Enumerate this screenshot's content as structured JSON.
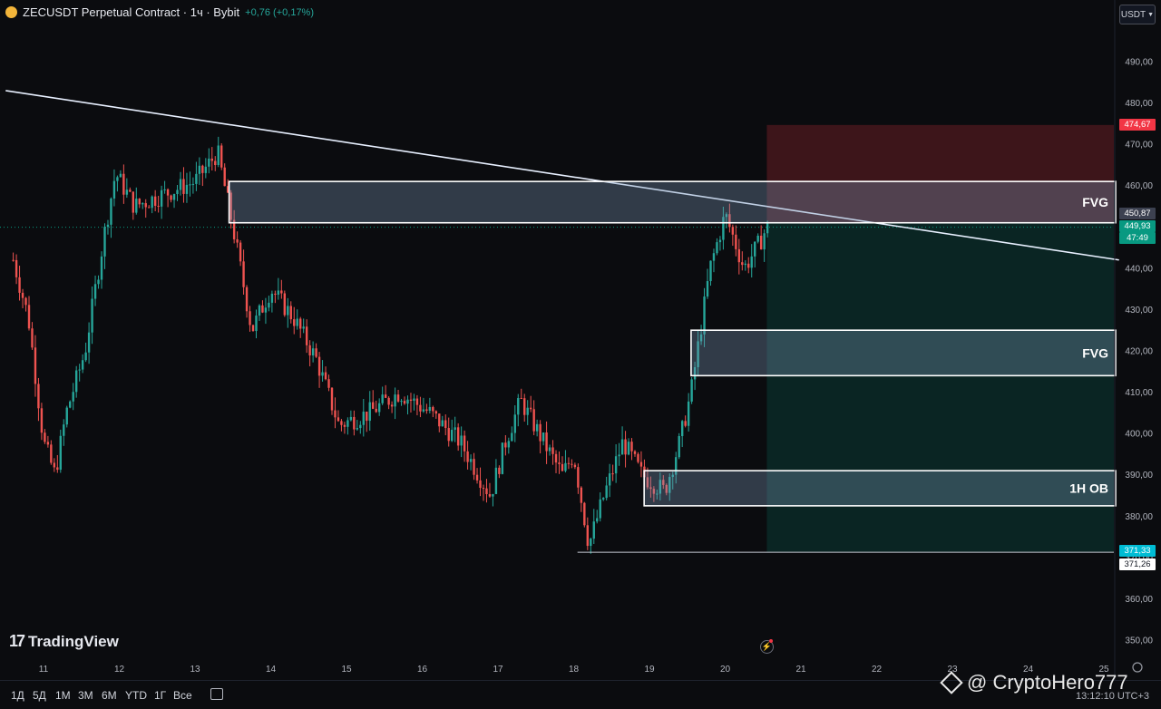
{
  "header": {
    "title": "ZECUSDT Perpetual Contract · 1ч · Bybit",
    "change": "+0,76 (+0,17%)"
  },
  "currency_button": "USDT",
  "price_tags": {
    "top_red": "474,67",
    "last_dark": "450,87",
    "current": "449,93",
    "countdown": "47:49",
    "low_teal": "371,33",
    "low_white": "371,26"
  },
  "branding": {
    "logo_text": "TradingView"
  },
  "toolbar": {
    "timeframes": [
      "1Д",
      "5Д",
      "1М",
      "3М",
      "6М",
      "YTD",
      "1Г",
      "Все"
    ],
    "clock": "13:12:10 UTC+3"
  },
  "watermark": "@ CryptoHero777",
  "colors": {
    "up": "#26a69a",
    "down": "#ef5350",
    "accent_teal": "#00bcd4",
    "accent_red": "#f23645"
  },
  "chart_data": {
    "type": "candlestick",
    "title": "ZECUSDT Perpetual Contract · 1ч · Bybit",
    "y_axis": {
      "ticks": [
        "490,00",
        "480,00",
        "470,00",
        "460,00",
        "450,00",
        "440,00",
        "430,00",
        "420,00",
        "410,00",
        "400,00",
        "390,00",
        "380,00",
        "370,00",
        "360,00",
        "350,00"
      ],
      "ylim": [
        345,
        498
      ]
    },
    "x_axis": {
      "ticks": [
        "11",
        "12",
        "13",
        "14",
        "15",
        "16",
        "17",
        "18",
        "19",
        "20",
        "21",
        "22",
        "23",
        "24",
        "25"
      ]
    },
    "price_path": [
      {
        "day": 10.6,
        "price": 442
      },
      {
        "day": 10.8,
        "price": 428
      },
      {
        "day": 11.0,
        "price": 398
      },
      {
        "day": 11.15,
        "price": 390
      },
      {
        "day": 11.3,
        "price": 405
      },
      {
        "day": 11.55,
        "price": 420
      },
      {
        "day": 11.8,
        "price": 448
      },
      {
        "day": 11.95,
        "price": 463
      },
      {
        "day": 12.2,
        "price": 455
      },
      {
        "day": 12.6,
        "price": 458
      },
      {
        "day": 13.0,
        "price": 461
      },
      {
        "day": 13.3,
        "price": 468
      },
      {
        "day": 13.5,
        "price": 450
      },
      {
        "day": 13.75,
        "price": 425
      },
      {
        "day": 14.0,
        "price": 435
      },
      {
        "day": 14.3,
        "price": 428
      },
      {
        "day": 14.6,
        "price": 418
      },
      {
        "day": 14.9,
        "price": 402
      },
      {
        "day": 15.3,
        "price": 405
      },
      {
        "day": 15.7,
        "price": 410
      },
      {
        "day": 16.1,
        "price": 405
      },
      {
        "day": 16.5,
        "price": 398
      },
      {
        "day": 16.9,
        "price": 385
      },
      {
        "day": 17.1,
        "price": 398
      },
      {
        "day": 17.3,
        "price": 408
      },
      {
        "day": 17.6,
        "price": 398
      },
      {
        "day": 17.85,
        "price": 390
      },
      {
        "day": 18.0,
        "price": 395
      },
      {
        "day": 18.2,
        "price": 373
      },
      {
        "day": 18.4,
        "price": 385
      },
      {
        "day": 18.65,
        "price": 398
      },
      {
        "day": 18.9,
        "price": 390
      },
      {
        "day": 19.2,
        "price": 386
      },
      {
        "day": 19.4,
        "price": 398
      },
      {
        "day": 19.55,
        "price": 410
      },
      {
        "day": 19.8,
        "price": 440
      },
      {
        "day": 20.0,
        "price": 453
      },
      {
        "day": 20.25,
        "price": 440
      },
      {
        "day": 20.45,
        "price": 446
      },
      {
        "day": 20.55,
        "price": 449.93
      }
    ],
    "trendline": {
      "start": {
        "day": 10.5,
        "price": 483
      },
      "end": {
        "day": 25.2,
        "price": 442
      }
    },
    "zones": [
      {
        "label": "FVG",
        "from_day": 13.45,
        "to_day": 25.18,
        "top": 461,
        "bottom": 451
      },
      {
        "label": "FVG",
        "from_day": 19.55,
        "to_day": 25.18,
        "top": 425,
        "bottom": 414
      },
      {
        "label": "1H OB",
        "from_day": 18.93,
        "to_day": 25.18,
        "top": 391,
        "bottom": 382.5
      }
    ],
    "position": {
      "start_day": 20.55,
      "end_day": 25.18,
      "stop": 474.67,
      "entry": 450.87,
      "target": 371.33
    },
    "low_line": {
      "from_day": 18.05,
      "price": 371.26
    }
  }
}
